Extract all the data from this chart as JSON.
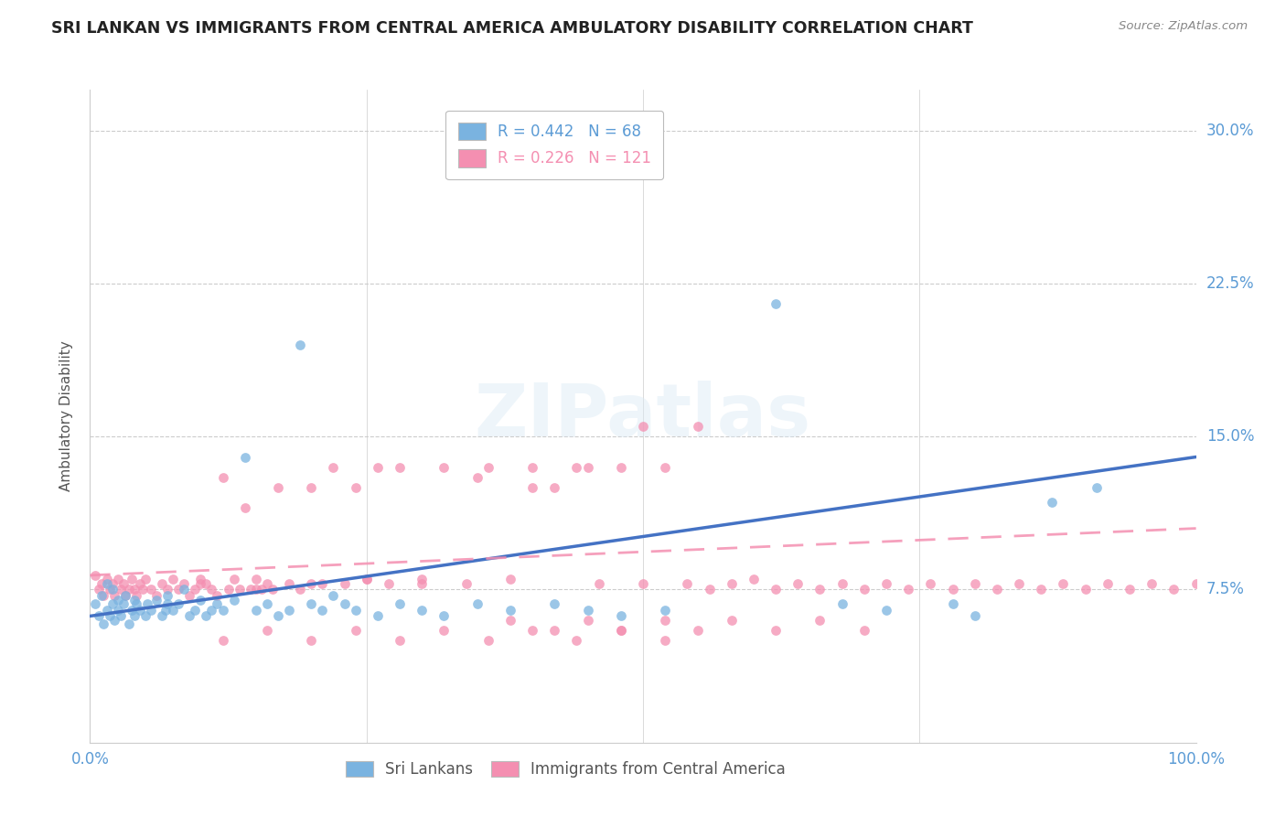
{
  "title": "SRI LANKAN VS IMMIGRANTS FROM CENTRAL AMERICA AMBULATORY DISABILITY CORRELATION CHART",
  "source": "Source: ZipAtlas.com",
  "ylabel": "Ambulatory Disability",
  "blue_color": "#7ab3e0",
  "pink_color": "#f48fb1",
  "blue_line_color": "#4472c4",
  "pink_line_color": "#f48fb1",
  "axis_label_color": "#5b9bd5",
  "grid_color": "#cccccc",
  "background_color": "#ffffff",
  "title_color": "#222222",
  "ylim": [
    0.0,
    0.32
  ],
  "xlim": [
    0.0,
    1.0
  ],
  "ytick_vals": [
    0.075,
    0.15,
    0.225,
    0.3
  ],
  "ytick_labels": [
    "7.5%",
    "15.0%",
    "22.5%",
    "30.0%"
  ],
  "blue_line_start": 0.062,
  "blue_line_end": 0.14,
  "pink_line_start": 0.082,
  "pink_line_end": 0.105,
  "legend_line1": "R = 0.442   N = 68",
  "legend_line2": "R = 0.226   N = 121",
  "legend_color1": "#5b9bd5",
  "legend_color2": "#f48fb1",
  "legend_labels": [
    "Sri Lankans",
    "Immigrants from Central America"
  ],
  "sri_lankans_x": [
    0.005,
    0.008,
    0.01,
    0.012,
    0.015,
    0.015,
    0.018,
    0.02,
    0.02,
    0.022,
    0.025,
    0.025,
    0.028,
    0.03,
    0.032,
    0.035,
    0.038,
    0.04,
    0.04,
    0.042,
    0.045,
    0.05,
    0.052,
    0.055,
    0.06,
    0.065,
    0.068,
    0.07,
    0.07,
    0.075,
    0.08,
    0.085,
    0.09,
    0.095,
    0.1,
    0.105,
    0.11,
    0.115,
    0.12,
    0.13,
    0.14,
    0.15,
    0.16,
    0.17,
    0.18,
    0.19,
    0.2,
    0.21,
    0.22,
    0.23,
    0.24,
    0.26,
    0.28,
    0.3,
    0.32,
    0.35,
    0.38,
    0.42,
    0.45,
    0.48,
    0.52,
    0.62,
    0.68,
    0.72,
    0.78,
    0.8,
    0.87,
    0.91
  ],
  "sri_lankans_y": [
    0.068,
    0.062,
    0.072,
    0.058,
    0.065,
    0.078,
    0.062,
    0.068,
    0.075,
    0.06,
    0.065,
    0.07,
    0.062,
    0.068,
    0.072,
    0.058,
    0.065,
    0.07,
    0.062,
    0.068,
    0.065,
    0.062,
    0.068,
    0.065,
    0.07,
    0.062,
    0.065,
    0.068,
    0.072,
    0.065,
    0.068,
    0.075,
    0.062,
    0.065,
    0.07,
    0.062,
    0.065,
    0.068,
    0.065,
    0.07,
    0.14,
    0.065,
    0.068,
    0.062,
    0.065,
    0.195,
    0.068,
    0.065,
    0.072,
    0.068,
    0.065,
    0.062,
    0.068,
    0.065,
    0.062,
    0.068,
    0.065,
    0.068,
    0.065,
    0.062,
    0.065,
    0.215,
    0.068,
    0.065,
    0.068,
    0.062,
    0.118,
    0.125
  ],
  "central_america_x": [
    0.005,
    0.008,
    0.01,
    0.012,
    0.015,
    0.018,
    0.02,
    0.022,
    0.025,
    0.028,
    0.03,
    0.032,
    0.035,
    0.038,
    0.04,
    0.042,
    0.045,
    0.048,
    0.05,
    0.055,
    0.06,
    0.065,
    0.07,
    0.075,
    0.08,
    0.085,
    0.09,
    0.095,
    0.1,
    0.105,
    0.11,
    0.115,
    0.12,
    0.125,
    0.13,
    0.135,
    0.14,
    0.145,
    0.15,
    0.155,
    0.16,
    0.165,
    0.17,
    0.18,
    0.19,
    0.2,
    0.21,
    0.22,
    0.23,
    0.24,
    0.25,
    0.26,
    0.27,
    0.28,
    0.3,
    0.32,
    0.34,
    0.36,
    0.38,
    0.4,
    0.42,
    0.44,
    0.46,
    0.48,
    0.5,
    0.52,
    0.54,
    0.56,
    0.58,
    0.6,
    0.62,
    0.64,
    0.66,
    0.68,
    0.7,
    0.72,
    0.74,
    0.76,
    0.78,
    0.8,
    0.82,
    0.84,
    0.86,
    0.88,
    0.9,
    0.92,
    0.94,
    0.96,
    0.98,
    1.0,
    0.38,
    0.42,
    0.45,
    0.48,
    0.52,
    0.55,
    0.58,
    0.62,
    0.66,
    0.7,
    0.45,
    0.5,
    0.55,
    0.4,
    0.35,
    0.3,
    0.25,
    0.2,
    0.15,
    0.1,
    0.52,
    0.48,
    0.44,
    0.4,
    0.36,
    0.32,
    0.28,
    0.24,
    0.2,
    0.16,
    0.12
  ],
  "central_america_y": [
    0.082,
    0.075,
    0.078,
    0.072,
    0.08,
    0.075,
    0.078,
    0.072,
    0.08,
    0.075,
    0.078,
    0.072,
    0.075,
    0.08,
    0.075,
    0.072,
    0.078,
    0.075,
    0.08,
    0.075,
    0.072,
    0.078,
    0.075,
    0.08,
    0.075,
    0.078,
    0.072,
    0.075,
    0.08,
    0.078,
    0.075,
    0.072,
    0.13,
    0.075,
    0.08,
    0.075,
    0.115,
    0.075,
    0.08,
    0.075,
    0.078,
    0.075,
    0.125,
    0.078,
    0.075,
    0.125,
    0.078,
    0.135,
    0.078,
    0.125,
    0.08,
    0.135,
    0.078,
    0.135,
    0.08,
    0.135,
    0.078,
    0.135,
    0.08,
    0.135,
    0.125,
    0.135,
    0.078,
    0.135,
    0.078,
    0.135,
    0.078,
    0.075,
    0.078,
    0.08,
    0.075,
    0.078,
    0.075,
    0.078,
    0.075,
    0.078,
    0.075,
    0.078,
    0.075,
    0.078,
    0.075,
    0.078,
    0.075,
    0.078,
    0.075,
    0.078,
    0.075,
    0.078,
    0.075,
    0.078,
    0.06,
    0.055,
    0.06,
    0.055,
    0.06,
    0.055,
    0.06,
    0.055,
    0.06,
    0.055,
    0.135,
    0.155,
    0.155,
    0.125,
    0.13,
    0.078,
    0.08,
    0.078,
    0.075,
    0.078,
    0.05,
    0.055,
    0.05,
    0.055,
    0.05,
    0.055,
    0.05,
    0.055,
    0.05,
    0.055,
    0.05
  ]
}
